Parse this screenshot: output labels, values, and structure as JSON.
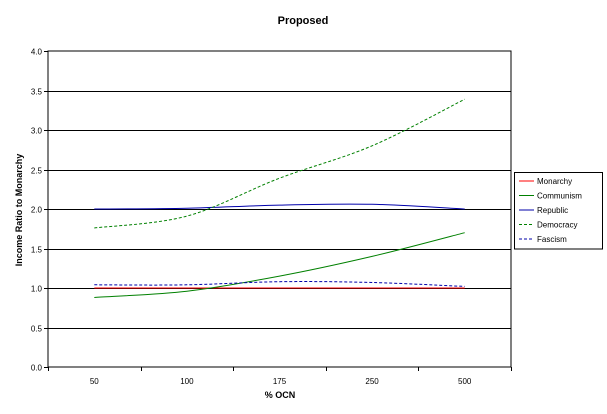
{
  "chart_data": {
    "type": "line",
    "title": "Proposed",
    "xlabel": "% OCN",
    "ylabel": "Income Ratio to Monarchy",
    "categories": [
      "50",
      "100",
      "175",
      "250",
      "500"
    ],
    "ylim": [
      0,
      4
    ],
    "yticks": [
      "0.0",
      "0.5",
      "1.0",
      "1.5",
      "2.0",
      "2.5",
      "3.0",
      "3.5",
      "4.0"
    ],
    "grid": "horizontal",
    "legend_position": "right",
    "series": [
      {
        "name": "Monarchy",
        "color": "#ff0000",
        "dash": "solid",
        "values": [
          1.0,
          1.0,
          1.0,
          1.0,
          1.0
        ]
      },
      {
        "name": "Communism",
        "color": "#008000",
        "dash": "solid",
        "values": [
          0.88,
          0.96,
          1.15,
          1.4,
          1.7
        ]
      },
      {
        "name": "Republic",
        "color": "#0000aa",
        "dash": "solid",
        "values": [
          2.0,
          2.01,
          2.05,
          2.06,
          2.0
        ]
      },
      {
        "name": "Democracy",
        "color": "#008000",
        "dash": "dashed",
        "values": [
          1.76,
          1.91,
          2.39,
          2.8,
          3.39
        ]
      },
      {
        "name": "Fascism",
        "color": "#0000aa",
        "dash": "dashed",
        "values": [
          1.04,
          1.04,
          1.08,
          1.07,
          1.02
        ]
      }
    ]
  }
}
